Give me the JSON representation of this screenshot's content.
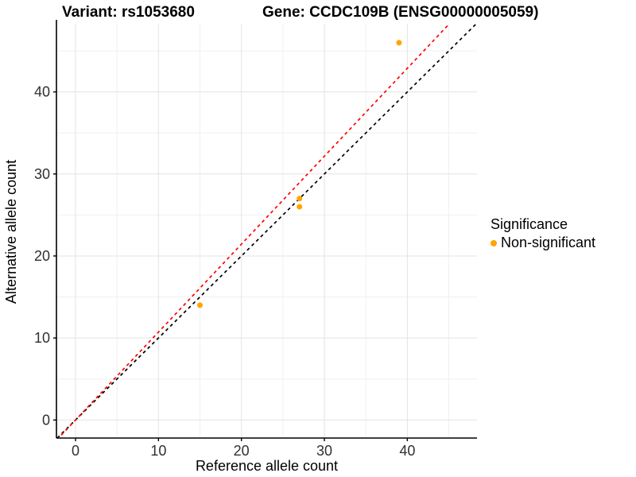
{
  "titles": {
    "left": "Variant: rs1053680",
    "right": "Gene: CCDC109B (ENSG00000005059)"
  },
  "chart_data": {
    "type": "scatter",
    "xlabel": "Reference allele count",
    "ylabel": "Alternative allele count",
    "xlim": [
      -2.3,
      48.4
    ],
    "ylim": [
      -2.2,
      48.3
    ],
    "x_ticks": [
      0,
      10,
      20,
      30,
      40
    ],
    "y_ticks": [
      0,
      10,
      20,
      30,
      40
    ],
    "x_minor_ticks": [
      5,
      15,
      25,
      35,
      45
    ],
    "y_minor_ticks": [
      5,
      15,
      25,
      35,
      45
    ],
    "grid": "major+minor",
    "points": [
      {
        "x": 15,
        "y": 14
      },
      {
        "x": 27,
        "y": 26
      },
      {
        "x": 27,
        "y": 27
      },
      {
        "x": 39,
        "y": 46
      }
    ],
    "point_color": "#FFA500",
    "point_radius": 3.5,
    "lines": [
      {
        "name": "identity-line",
        "slope": 1.0,
        "intercept": 0,
        "color": "#000000",
        "style": "dashed"
      },
      {
        "name": "fit-line",
        "slope": 1.072,
        "intercept": 0,
        "color": "#FF0000",
        "style": "dashed"
      }
    ],
    "legend": {
      "title": "Significance",
      "position": "right",
      "items": [
        {
          "label": "Non-significant",
          "color": "#FFA500",
          "marker": "circle"
        }
      ]
    },
    "colors": {
      "grid_major": "#e3e3e3",
      "grid_minor": "#f0f0f0",
      "axis_line": "#000000",
      "tick_text": "#303030"
    }
  }
}
